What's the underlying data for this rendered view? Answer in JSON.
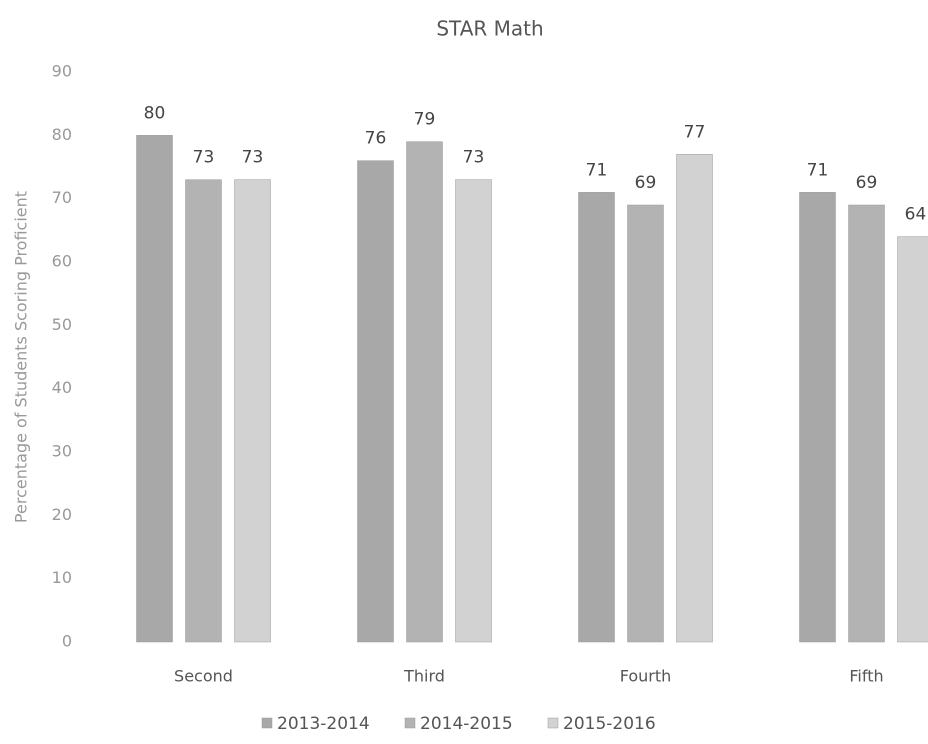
{
  "chart_data": {
    "type": "bar",
    "title": "STAR Math",
    "y_axis_label": "Percentage of Students Scoring Proficient",
    "categories": [
      "Second",
      "Third",
      "Fourth",
      "Fifth"
    ],
    "series": [
      {
        "name": "2013-2014",
        "color": "#a8a8a8",
        "values": [
          80,
          76,
          71,
          71
        ]
      },
      {
        "name": "2014-2015",
        "color": "#b3b3b3",
        "values": [
          73,
          79,
          69,
          69
        ]
      },
      {
        "name": "2015-2016",
        "color": "#d2d2d2",
        "values": [
          73,
          73,
          77,
          64
        ]
      }
    ],
    "ylim": [
      0,
      90
    ],
    "yticks": [
      0,
      10,
      20,
      30,
      40,
      50,
      60,
      70,
      80,
      90
    ],
    "grid": false,
    "legend": "bottom"
  }
}
